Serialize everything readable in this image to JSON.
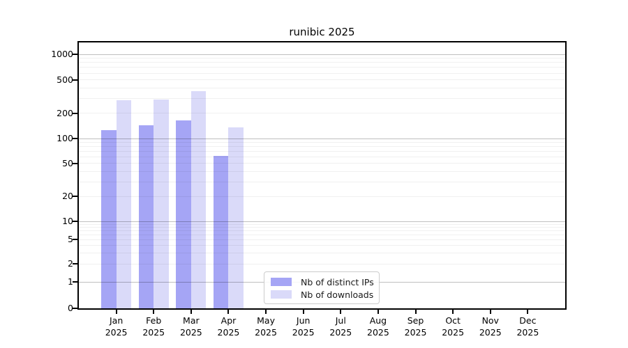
{
  "title": "runibic 2025",
  "chart_data": {
    "type": "bar",
    "title": "runibic 2025",
    "categories": [
      "Jan",
      "Feb",
      "Mar",
      "Apr",
      "May",
      "Jun",
      "Jul",
      "Aug",
      "Sep",
      "Oct",
      "Nov",
      "Dec"
    ],
    "category_sublabel": "2025",
    "series": [
      {
        "name": "Nb of distinct IPs",
        "color": "#a5a5f5",
        "values": [
          127,
          143,
          164,
          62,
          null,
          null,
          null,
          null,
          null,
          null,
          null,
          null
        ]
      },
      {
        "name": "Nb of downloads",
        "color": "#dadaf9",
        "values": [
          288,
          290,
          365,
          137,
          null,
          null,
          null,
          null,
          null,
          null,
          null,
          null
        ]
      }
    ],
    "xlabel": "",
    "ylabel": "",
    "yscale": "symlog",
    "yticks": [
      0,
      1,
      2,
      5,
      10,
      20,
      50,
      100,
      200,
      500,
      1000
    ],
    "ylim": [
      0,
      1400
    ],
    "grid": "horizontal major+minor",
    "legend_position": "lower center"
  },
  "legend": {
    "items": [
      {
        "label": "Nb of distinct IPs",
        "color": "#a5a5f5"
      },
      {
        "label": "Nb of downloads",
        "color": "#dadaf9"
      }
    ]
  }
}
